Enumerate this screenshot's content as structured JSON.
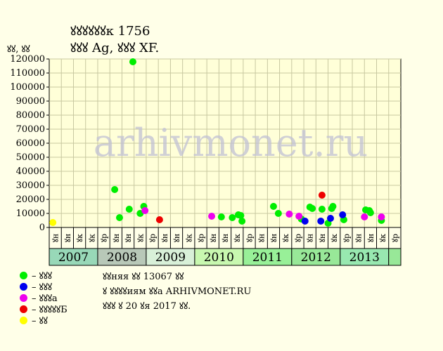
{
  "header": {
    "title_line1": "ꙋꙋꙋꙋꙋꙋк 1756",
    "title_line2": "ꙋꙋꙋ Ag, ꙋꙋꙋ XF.",
    "unit_label": "ꙋꙋ, ꙋꙋ"
  },
  "legend": {
    "items": [
      {
        "label": "– ꙋꙋꙋ",
        "color": "#00ee00"
      },
      {
        "label": "– ꙋꙋꙋ",
        "color": "#0000ee"
      },
      {
        "label": "– ꙋꙋꙋа",
        "color": "#ee00ee"
      },
      {
        "label": "– ꙋꙋꙋꙋꙋБ",
        "color": "#ee0000"
      },
      {
        "label": "– ꙋꙋ",
        "color": "#ffff00"
      }
    ]
  },
  "footer": {
    "line1": "ꙋꙋняя ꙋꙋ 13067 ꙋꙋ",
    "line2": "ꙋ ꙋꙋꙋꙋиям ꙋꙋа ARHIVMONET.RU",
    "line3": "ꙋꙋꙋ ꙋ 20 ꙋя 2017 ꙋꙋ."
  },
  "watermark": "arhivmonet.ru",
  "colors": {
    "background": "#ffffe8",
    "plot_background": "#ffffd8",
    "grid": "#c8c8a0",
    "green": "#00ee00",
    "blue": "#0000ee",
    "magenta": "#ee00ee",
    "red": "#ee0000",
    "yellow": "#ffff00"
  },
  "chart_data": {
    "type": "scatter",
    "ylim": [
      0,
      120000
    ],
    "yticks": [
      0,
      10000,
      20000,
      30000,
      40000,
      50000,
      60000,
      70000,
      80000,
      90000,
      100000,
      110000,
      120000
    ],
    "grid": true,
    "quarter_labels": [
      "ꙋн",
      "ꙋн",
      "ꙋк",
      "ꙋк",
      "ꙋр",
      "ꙋн",
      "ꙋн",
      "ꙋк",
      "ꙋр",
      "ꙋн",
      "ꙋн",
      "ꙋк",
      "ꙋр",
      "ꙋн",
      "ꙋн",
      "ꙋк",
      "ꙋр",
      "ꙋн",
      "ꙋн",
      "ꙋк",
      "ꙋр",
      "ꙋн",
      "ꙋн",
      "ꙋк",
      "ꙋр",
      "ꙋн",
      "ꙋн",
      "ꙋк",
      "ꙋр"
    ],
    "years": [
      {
        "label": "2007",
        "start_q": 0,
        "quarters": 4,
        "color": "#98d8b8"
      },
      {
        "label": "2008",
        "start_q": 4,
        "quarters": 4,
        "color": "#b8c8b8"
      },
      {
        "label": "2009",
        "start_q": 8,
        "quarters": 4,
        "color": "#d8f0d8"
      },
      {
        "label": "2010",
        "start_q": 12,
        "quarters": 4,
        "color": "#c8f8b0"
      },
      {
        "label": "2011",
        "start_q": 16,
        "quarters": 4,
        "color": "#98f098"
      },
      {
        "label": "2012",
        "start_q": 20,
        "quarters": 4,
        "color": "#98e898"
      },
      {
        "label": "2013",
        "start_q": 24,
        "quarters": 4,
        "color": "#98e8b0"
      },
      {
        "label": "",
        "start_q": 28,
        "quarters": 1,
        "color": "#98e898"
      }
    ],
    "series": [
      {
        "name": "ꙋꙋꙋ",
        "color": "#00ee00",
        "points": [
          {
            "x": 5.4,
            "y": 27000
          },
          {
            "x": 5.8,
            "y": 7000
          },
          {
            "x": 6.6,
            "y": 13000
          },
          {
            "x": 6.9,
            "y": 118000
          },
          {
            "x": 7.5,
            "y": 10000
          },
          {
            "x": 7.8,
            "y": 15000
          },
          {
            "x": 14.2,
            "y": 7500
          },
          {
            "x": 15.1,
            "y": 7000
          },
          {
            "x": 15.6,
            "y": 9000
          },
          {
            "x": 15.8,
            "y": 8500
          },
          {
            "x": 15.9,
            "y": 4500
          },
          {
            "x": 18.5,
            "y": 15000
          },
          {
            "x": 18.9,
            "y": 10000
          },
          {
            "x": 20.8,
            "y": 6000
          },
          {
            "x": 21.5,
            "y": 14500
          },
          {
            "x": 21.7,
            "y": 13500
          },
          {
            "x": 22.5,
            "y": 13000
          },
          {
            "x": 23.0,
            "y": 3000
          },
          {
            "x": 23.3,
            "y": 13500
          },
          {
            "x": 23.4,
            "y": 15000
          },
          {
            "x": 24.3,
            "y": 5500
          },
          {
            "x": 26.1,
            "y": 12500
          },
          {
            "x": 26.4,
            "y": 12000
          },
          {
            "x": 26.5,
            "y": 10500
          },
          {
            "x": 27.4,
            "y": 5000
          }
        ]
      },
      {
        "name": "ꙋꙋꙋ",
        "color": "#0000ee",
        "points": [
          {
            "x": 21.1,
            "y": 4500
          },
          {
            "x": 22.4,
            "y": 4500
          },
          {
            "x": 23.2,
            "y": 6500
          },
          {
            "x": 24.2,
            "y": 9000
          }
        ]
      },
      {
        "name": "ꙋꙋꙋа",
        "color": "#ee00ee",
        "points": [
          {
            "x": 7.9,
            "y": 12000
          },
          {
            "x": 13.4,
            "y": 8000
          },
          {
            "x": 19.8,
            "y": 9500
          },
          {
            "x": 20.6,
            "y": 8000
          },
          {
            "x": 26.0,
            "y": 7500
          },
          {
            "x": 27.4,
            "y": 7500
          }
        ]
      },
      {
        "name": "ꙋꙋꙋꙋꙋБ",
        "color": "#ee0000",
        "points": [
          {
            "x": 9.1,
            "y": 5500
          },
          {
            "x": 22.5,
            "y": 23000
          }
        ]
      },
      {
        "name": "ꙋꙋ",
        "color": "#ffff00",
        "points": [
          {
            "x": 0.3,
            "y": 3500
          }
        ]
      }
    ]
  }
}
